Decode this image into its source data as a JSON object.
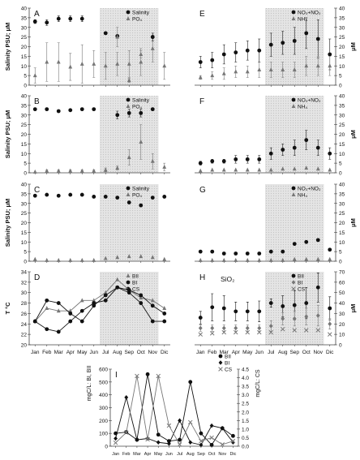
{
  "months": [
    "Jan",
    "Feb",
    "Mar",
    "Apr",
    "May",
    "Jun",
    "Jul",
    "Aug",
    "Sep",
    "Oct",
    "Nov",
    "Dic"
  ],
  "colors": {
    "shade": "#dcdcdc",
    "black": "#111111",
    "gray": "#777777",
    "light": "#aaaaaa"
  },
  "chart_data": [
    {
      "panel": "A",
      "type": "scatter",
      "ylabel": "Salinity PSU; μM",
      "ylim": [
        0,
        40
      ],
      "yticks": [
        0,
        5,
        10,
        15,
        20,
        25,
        30,
        35,
        40
      ],
      "shaded": [
        "Jul",
        "Nov"
      ],
      "legend": [
        "Salinity",
        "PO₄"
      ],
      "series": [
        {
          "name": "Salinity",
          "marker": "circle",
          "values": [
            33,
            32.5,
            34.5,
            34.5,
            34.5,
            null,
            27,
            25.5,
            null,
            null,
            null,
            null
          ],
          "err": [
            1,
            1.5,
            1.5,
            1.5,
            1.5,
            0,
            0.5,
            0,
            0,
            0,
            0,
            0
          ]
        },
        {
          "name": "PO₄",
          "marker": "triangle",
          "values": [
            5,
            12,
            12,
            9.5,
            11,
            11,
            10,
            11,
            11,
            12,
            19,
            10
          ],
          "err": [
            4,
            10,
            10,
            7,
            10,
            7,
            7,
            6,
            7,
            7,
            7,
            7
          ]
        },
        {
          "name": "",
          "marker": "circle",
          "values": [
            null,
            null,
            null,
            null,
            null,
            null,
            null,
            null,
            null,
            null,
            25,
            null
          ],
          "err": [
            0,
            0,
            0,
            0,
            0,
            0,
            0,
            0,
            0,
            0,
            2,
            0
          ]
        },
        {
          "name": "",
          "marker": "triangle",
          "values": [
            null,
            null,
            null,
            null,
            null,
            null,
            null,
            25,
            2.5,
            16,
            null,
            null
          ],
          "err": [
            0,
            0,
            0,
            0,
            0,
            0,
            0,
            5,
            1,
            2,
            0,
            0
          ]
        }
      ]
    },
    {
      "panel": "B",
      "type": "scatter",
      "ylabel": "Salinity PSU; μM",
      "ylim": [
        0,
        40
      ],
      "yticks": [
        0,
        5,
        10,
        15,
        20,
        25,
        30,
        35,
        40
      ],
      "shaded": [
        "Jul",
        "Nov"
      ],
      "legend": [
        "Salinity",
        "PO₄"
      ],
      "series": [
        {
          "name": "Salinity",
          "marker": "circle",
          "values": [
            33,
            33,
            32,
            32.5,
            33,
            33,
            null,
            30,
            31,
            null,
            null,
            null
          ],
          "err": [
            0,
            0.5,
            0,
            0,
            0,
            0,
            0,
            2,
            2,
            0,
            0,
            0
          ]
        },
        {
          "name": "PO₄",
          "marker": "triangle",
          "values": [
            0.5,
            1,
            1,
            1,
            1,
            1,
            1.5,
            2.5,
            8,
            16,
            6,
            3
          ],
          "err": [
            0,
            0.5,
            0.5,
            0.5,
            0.5,
            0.5,
            1,
            1,
            4,
            9,
            4,
            2
          ]
        },
        {
          "name": "",
          "marker": "circle",
          "values": [
            null,
            null,
            null,
            null,
            null,
            null,
            null,
            null,
            null,
            31,
            33,
            null
          ],
          "err": [
            0,
            0,
            0,
            0,
            0,
            0,
            0,
            0,
            0,
            2,
            0,
            0
          ]
        }
      ]
    },
    {
      "panel": "C",
      "type": "scatter",
      "ylabel": "Salinity PSU; μM",
      "ylim": [
        0,
        40
      ],
      "yticks": [
        0,
        5,
        10,
        15,
        20,
        25,
        30,
        35,
        40
      ],
      "shaded": [
        "Jul",
        "Nov"
      ],
      "legend": [
        "Salinity",
        "PO₄"
      ],
      "series": [
        {
          "name": "Salinity",
          "marker": "circle",
          "values": [
            34,
            34.5,
            34,
            34.5,
            34.5,
            33.5,
            33.5,
            33,
            30.5,
            29,
            33,
            33.5
          ],
          "err": [
            0,
            0,
            0,
            0,
            0,
            0,
            0,
            0,
            0,
            0,
            0,
            0
          ]
        },
        {
          "name": "PO₄",
          "marker": "triangle",
          "values": [
            1,
            0.5,
            0.5,
            0.5,
            0.5,
            0.5,
            1.5,
            2,
            2.5,
            2.5,
            2,
            1
          ],
          "err": [
            0,
            0,
            0,
            0,
            0,
            0,
            0,
            0,
            0,
            0,
            0,
            0
          ]
        }
      ]
    },
    {
      "panel": "D",
      "type": "line",
      "ylabel": "T °C",
      "ylim": [
        20,
        34
      ],
      "yticks": [
        20,
        22,
        24,
        26,
        28,
        30,
        32,
        34
      ],
      "shaded": [
        "Jul",
        "Nov"
      ],
      "legend": [
        "BII",
        "BI",
        "CS"
      ],
      "series": [
        {
          "name": "BII",
          "marker": "triangle",
          "values": [
            24.5,
            27,
            26.5,
            26.5,
            28.5,
            28.5,
            30,
            32.5,
            30.5,
            29,
            28.5,
            27
          ]
        },
        {
          "name": "BI",
          "marker": "circle",
          "values": [
            24.5,
            28.5,
            28,
            26,
            24.5,
            27.5,
            29.5,
            31,
            30,
            28,
            24.5,
            24.5
          ]
        },
        {
          "name": "CS",
          "marker": "circle",
          "values": [
            24.5,
            23,
            22.5,
            24.5,
            26.5,
            28,
            28.5,
            31,
            30.5,
            29.5,
            27.5,
            26
          ]
        }
      ]
    },
    {
      "panel": "E",
      "type": "scatter",
      "ylabel": "μM",
      "ylim": [
        0,
        40
      ],
      "yticks": [
        0,
        5,
        10,
        15,
        20,
        25,
        30,
        35,
        40
      ],
      "shaded": [
        "Jul",
        "Nov"
      ],
      "legend": [
        "NO₃+NO₂",
        "NH₄"
      ],
      "series": [
        {
          "name": "NO₃+NO₂",
          "marker": "circle",
          "values": [
            12,
            13,
            16,
            17,
            18,
            18,
            21,
            22,
            23,
            27,
            24,
            16
          ],
          "err": [
            3,
            4,
            5,
            5,
            5,
            6,
            6,
            6,
            7,
            8,
            10,
            8
          ]
        },
        {
          "name": "NH₄",
          "marker": "triangle",
          "values": [
            4,
            5,
            6,
            7,
            7,
            8,
            8,
            8,
            8,
            10,
            10,
            10
          ],
          "err": [
            1,
            2,
            3,
            3,
            3,
            4,
            4,
            4,
            4,
            5,
            5,
            5
          ]
        }
      ]
    },
    {
      "panel": "F",
      "type": "scatter",
      "ylabel": "μM",
      "ylim": [
        0,
        40
      ],
      "yticks": [
        0,
        5,
        10,
        15,
        20,
        25,
        30,
        35,
        40
      ],
      "shaded": [
        "Jul",
        "Nov"
      ],
      "legend": [
        "NO₃+NO₂",
        "NH₄"
      ],
      "series": [
        {
          "name": "NO₃+NO₂",
          "marker": "circle",
          "values": [
            5,
            6,
            6,
            7,
            7,
            7,
            10,
            12,
            13,
            17,
            13,
            10
          ],
          "err": [
            1,
            1,
            1,
            2,
            2,
            2,
            3,
            3,
            4,
            5,
            4,
            3
          ]
        },
        {
          "name": "NH₄",
          "marker": "triangle",
          "values": [
            1,
            1.5,
            1.5,
            1.5,
            1.5,
            1.5,
            1.5,
            2,
            2,
            2.5,
            2,
            1.5
          ],
          "err": [
            0,
            0,
            0,
            0,
            0,
            0,
            0,
            0,
            0,
            0,
            0,
            0
          ]
        }
      ]
    },
    {
      "panel": "G",
      "type": "scatter",
      "ylabel": "μM",
      "ylim": [
        0,
        40
      ],
      "yticks": [
        0,
        5,
        10,
        15,
        20,
        25,
        30,
        35,
        40
      ],
      "shaded": [
        "Jul",
        "Nov"
      ],
      "legend": [
        "NO₃+NO₂",
        "NH₄"
      ],
      "series": [
        {
          "name": "NO₃+NO₂",
          "marker": "circle",
          "values": [
            5,
            5,
            4,
            4,
            4,
            4,
            5,
            5,
            9,
            10,
            11,
            6
          ],
          "err": [
            0,
            0,
            0,
            0,
            0,
            0,
            0,
            0,
            0,
            0,
            0,
            0
          ]
        },
        {
          "name": "NH₄",
          "marker": "triangle",
          "values": [
            0.5,
            0.5,
            0.5,
            0.5,
            0.5,
            0.5,
            0.5,
            0.5,
            1,
            1,
            1,
            1
          ],
          "err": [
            0,
            0,
            0,
            0,
            0,
            0,
            0,
            0,
            0,
            0,
            0,
            0
          ]
        }
      ]
    },
    {
      "panel": "H",
      "type": "scatter",
      "title": "SiO₂",
      "ylabel": "μM",
      "ylim": [
        0,
        70
      ],
      "yticks": [
        0,
        10,
        20,
        30,
        40,
        50,
        60,
        70
      ],
      "shaded": [
        "Jul",
        "Nov"
      ],
      "legend": [
        "BII",
        "BI",
        "CS"
      ],
      "series": [
        {
          "name": "BII",
          "marker": "circle",
          "values": [
            26,
            36,
            35,
            32,
            32,
            32,
            40,
            37,
            38,
            40,
            55,
            35
          ],
          "err": [
            6,
            13,
            12,
            9,
            9,
            10,
            4,
            10,
            14,
            15,
            14,
            11
          ]
        },
        {
          "name": "BI",
          "marker": "diamond",
          "values": [
            16,
            16,
            16,
            16,
            16,
            16,
            18,
            25,
            25,
            27,
            28,
            20
          ],
          "err": [
            3,
            3,
            3,
            3,
            3,
            3,
            5,
            6,
            7,
            8,
            10,
            5
          ]
        },
        {
          "name": "CS",
          "marker": "x",
          "values": [
            10,
            11,
            12,
            12,
            12,
            12,
            12,
            15,
            14,
            14,
            14,
            10
          ],
          "err": [
            0,
            0,
            0,
            0,
            0,
            0,
            0,
            0,
            0,
            0,
            0,
            0
          ]
        }
      ]
    },
    {
      "panel": "I",
      "type": "line",
      "ylabel": "mgC/L: BI, BII",
      "ylabel_right": "mgC/L: CS",
      "ylim": [
        0,
        600
      ],
      "yticks": [
        0,
        100,
        200,
        300,
        400,
        500,
        600
      ],
      "ylim_right": [
        0,
        4.5
      ],
      "yticks_right": [
        0,
        0.5,
        1.0,
        1.5,
        2.0,
        2.5,
        3.0,
        3.5,
        4.0,
        4.5
      ],
      "legend": [
        "BII",
        "BI",
        "CS"
      ],
      "series": [
        {
          "name": "BII",
          "marker": "circle",
          "values": [
            100,
            110,
            50,
            560,
            90,
            40,
            50,
            500,
            100,
            10,
            140,
            80
          ],
          "axis": "left"
        },
        {
          "name": "BI",
          "marker": "diamond",
          "values": [
            60,
            380,
            50,
            60,
            30,
            20,
            200,
            30,
            10,
            160,
            140,
            30
          ],
          "axis": "left"
        },
        {
          "name": "CS",
          "marker": "x",
          "values": [
            0.2,
            0.8,
            4.1,
            0.4,
            4.1,
            1.2,
            0.1,
            1.4,
            0.3,
            0.5,
            0.1,
            0.3
          ],
          "axis": "right"
        }
      ]
    }
  ]
}
